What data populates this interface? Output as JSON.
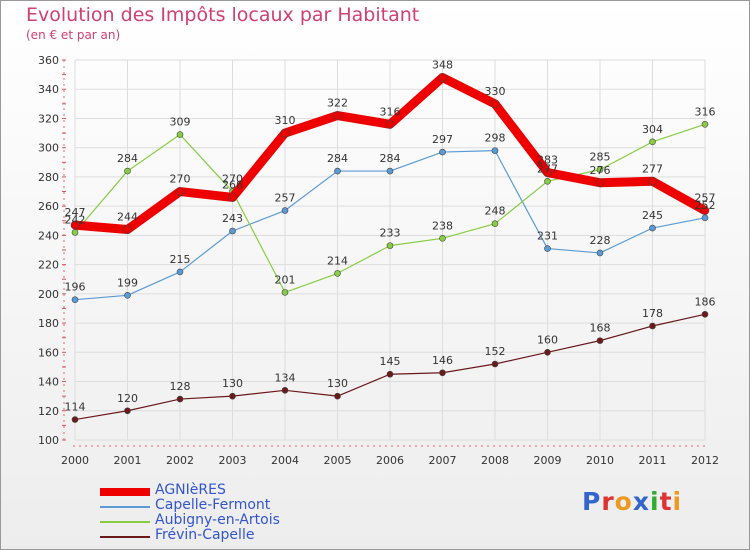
{
  "title": "Evolution des Impôts locaux par Habitant",
  "subtitle": "(en € et par an)",
  "logo_text": "Proxiti",
  "chart_data": {
    "type": "line",
    "title": "Evolution des Impôts locaux par Habitant",
    "subtitle": "(en € et par an)",
    "categories": [
      "2000",
      "2001",
      "2002",
      "2003",
      "2004",
      "2005",
      "2006",
      "2007",
      "2008",
      "2009",
      "2010",
      "2011",
      "2012"
    ],
    "ylim": [
      100,
      360
    ],
    "yticks": [
      100,
      120,
      140,
      160,
      180,
      200,
      220,
      240,
      260,
      280,
      300,
      320,
      340,
      360
    ],
    "grid": true,
    "legend_position": "bottom-left",
    "series": [
      {
        "name": "AGNIèRES",
        "color": "#ee0000",
        "emphasis": true,
        "values": [
          247,
          244,
          270,
          266,
          310,
          322,
          316,
          348,
          330,
          283,
          276,
          277,
          257
        ]
      },
      {
        "name": "Capelle-Fermont",
        "color": "#5a9bd5",
        "values": [
          196,
          199,
          215,
          243,
          257,
          284,
          284,
          297,
          298,
          231,
          228,
          245,
          252
        ]
      },
      {
        "name": "Aubigny-en-Artois",
        "color": "#88cc44",
        "values": [
          242,
          284,
          309,
          270,
          201,
          214,
          233,
          238,
          248,
          277,
          285,
          304,
          316
        ]
      },
      {
        "name": "Frévin-Capelle",
        "color": "#6b1a1a",
        "values": [
          114,
          120,
          128,
          130,
          134,
          130,
          145,
          146,
          152,
          160,
          168,
          178,
          186
        ]
      }
    ],
    "point_labels": [
      [
        "247",
        "244",
        "270",
        "266",
        "310",
        "322",
        "316",
        "348",
        "330",
        "283",
        "276",
        "277",
        "257"
      ],
      [
        "196",
        "199",
        "215",
        "243",
        "257",
        "284",
        "284",
        "297",
        "298",
        "231",
        "228",
        "245",
        "252"
      ],
      [
        "242",
        "284",
        "309",
        "270",
        "201",
        "214",
        "233",
        "238",
        "248",
        "277",
        "285",
        "304",
        "316"
      ],
      [
        "114",
        "120",
        "128",
        "130",
        "134",
        "130",
        "145",
        "146",
        "152",
        "160",
        "168",
        "178",
        "186"
      ]
    ]
  }
}
